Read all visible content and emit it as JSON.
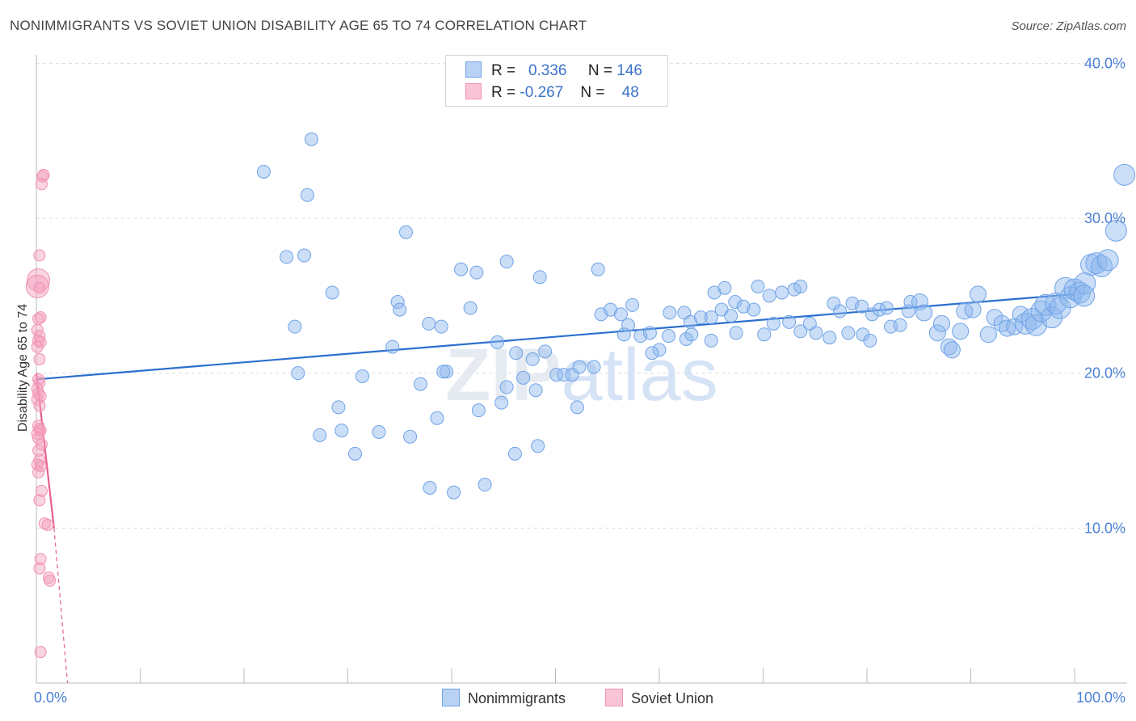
{
  "header": {
    "title": "NONIMMIGRANTS VS SOVIET UNION DISABILITY AGE 65 TO 74 CORRELATION CHART",
    "source": "Source: ZipAtlas.com"
  },
  "legend": {
    "row1": {
      "r_label": "R =",
      "r_value": "0.336",
      "n_label": "N =",
      "n_value": "146"
    },
    "row2": {
      "r_label": "R =",
      "r_value": "-0.267",
      "n_label": "N =",
      "n_value": "48"
    }
  },
  "bottom_legend": {
    "series1": "Nonimmigrants",
    "series2": "Soviet Union"
  },
  "colors": {
    "blue": "#6fa3e6",
    "blue_line": "#2b6fce",
    "pink": "#f191b2",
    "pink_line": "#e8608c",
    "tick": "#4a7fd4"
  },
  "chart_data": {
    "type": "scatter",
    "title": "NONIMMIGRANTS VS SOVIET UNION DISABILITY AGE 65 TO 74 CORRELATION CHART",
    "xlabel": "",
    "ylabel": "Disability Age 65 to 74",
    "xlim": [
      0,
      100
    ],
    "ylim": [
      0,
      40
    ],
    "x_tick_labels": [
      "0.0%",
      "100.0%"
    ],
    "y_tick_labels": [
      "10.0%",
      "20.0%",
      "30.0%",
      "40.0%"
    ],
    "y_ticks": [
      10,
      20,
      30,
      40
    ],
    "grid": true,
    "watermark": "ZIPatlas",
    "series": [
      {
        "name": "Nonimmigrants",
        "color": "#6fa3e6",
        "trend": {
          "x": [
            0,
            100
          ],
          "y": [
            19.6,
            25.1
          ]
        },
        "points": [
          {
            "x": 26.5,
            "y": 35.1
          },
          {
            "x": 21.9,
            "y": 33.0
          },
          {
            "x": 26.1,
            "y": 31.5
          },
          {
            "x": 35.6,
            "y": 29.1
          },
          {
            "x": 24.1,
            "y": 27.5
          },
          {
            "x": 25.8,
            "y": 27.6
          },
          {
            "x": 40.9,
            "y": 26.7
          },
          {
            "x": 42.4,
            "y": 26.5
          },
          {
            "x": 45.3,
            "y": 27.2
          },
          {
            "x": 48.5,
            "y": 26.2
          },
          {
            "x": 54.1,
            "y": 26.7
          },
          {
            "x": 28.5,
            "y": 25.2
          },
          {
            "x": 34.8,
            "y": 24.6
          },
          {
            "x": 35.0,
            "y": 24.1
          },
          {
            "x": 24.9,
            "y": 23.0
          },
          {
            "x": 37.8,
            "y": 23.2
          },
          {
            "x": 39.0,
            "y": 23.0
          },
          {
            "x": 41.8,
            "y": 24.2
          },
          {
            "x": 34.3,
            "y": 21.7
          },
          {
            "x": 44.4,
            "y": 22.0
          },
          {
            "x": 46.2,
            "y": 21.3
          },
          {
            "x": 47.8,
            "y": 20.9
          },
          {
            "x": 49.0,
            "y": 21.4
          },
          {
            "x": 25.2,
            "y": 20.0
          },
          {
            "x": 31.4,
            "y": 19.8
          },
          {
            "x": 37.0,
            "y": 19.3
          },
          {
            "x": 39.5,
            "y": 20.1
          },
          {
            "x": 39.2,
            "y": 20.1
          },
          {
            "x": 45.3,
            "y": 19.1
          },
          {
            "x": 46.9,
            "y": 19.7
          },
          {
            "x": 48.1,
            "y": 18.9
          },
          {
            "x": 50.1,
            "y": 19.9
          },
          {
            "x": 50.8,
            "y": 19.9
          },
          {
            "x": 51.6,
            "y": 19.9
          },
          {
            "x": 52.3,
            "y": 20.4
          },
          {
            "x": 53.7,
            "y": 20.4
          },
          {
            "x": 29.1,
            "y": 17.8
          },
          {
            "x": 38.6,
            "y": 17.1
          },
          {
            "x": 42.6,
            "y": 17.6
          },
          {
            "x": 44.8,
            "y": 18.1
          },
          {
            "x": 52.1,
            "y": 17.8
          },
          {
            "x": 27.3,
            "y": 16.0
          },
          {
            "x": 29.4,
            "y": 16.3
          },
          {
            "x": 33.0,
            "y": 16.2
          },
          {
            "x": 36.0,
            "y": 15.9
          },
          {
            "x": 30.7,
            "y": 14.8
          },
          {
            "x": 46.1,
            "y": 14.8
          },
          {
            "x": 48.3,
            "y": 15.3
          },
          {
            "x": 37.9,
            "y": 12.6
          },
          {
            "x": 40.2,
            "y": 12.3
          },
          {
            "x": 43.2,
            "y": 12.8
          },
          {
            "x": 54.4,
            "y": 23.8
          },
          {
            "x": 55.3,
            "y": 24.1
          },
          {
            "x": 56.3,
            "y": 23.8
          },
          {
            "x": 57.4,
            "y": 24.4
          },
          {
            "x": 57.0,
            "y": 23.1
          },
          {
            "x": 56.6,
            "y": 22.5
          },
          {
            "x": 58.2,
            "y": 22.4
          },
          {
            "x": 59.1,
            "y": 22.6
          },
          {
            "x": 60.9,
            "y": 22.4
          },
          {
            "x": 61.0,
            "y": 23.9
          },
          {
            "x": 62.4,
            "y": 23.9
          },
          {
            "x": 63.0,
            "y": 23.3
          },
          {
            "x": 64.0,
            "y": 23.6
          },
          {
            "x": 65.0,
            "y": 23.6
          },
          {
            "x": 66.0,
            "y": 24.1
          },
          {
            "x": 66.9,
            "y": 23.7
          },
          {
            "x": 65.0,
            "y": 22.1
          },
          {
            "x": 62.6,
            "y": 22.2
          },
          {
            "x": 60.0,
            "y": 21.5
          },
          {
            "x": 59.3,
            "y": 21.3
          },
          {
            "x": 63.1,
            "y": 22.5
          },
          {
            "x": 65.3,
            "y": 25.2
          },
          {
            "x": 66.3,
            "y": 25.5
          },
          {
            "x": 67.3,
            "y": 24.6
          },
          {
            "x": 68.1,
            "y": 24.3
          },
          {
            "x": 69.1,
            "y": 24.1
          },
          {
            "x": 69.5,
            "y": 25.6
          },
          {
            "x": 70.6,
            "y": 25.0
          },
          {
            "x": 71.8,
            "y": 25.2
          },
          {
            "x": 73.0,
            "y": 25.4
          },
          {
            "x": 73.6,
            "y": 25.6
          },
          {
            "x": 67.4,
            "y": 22.6
          },
          {
            "x": 70.1,
            "y": 22.5
          },
          {
            "x": 71.0,
            "y": 23.2
          },
          {
            "x": 72.5,
            "y": 23.3
          },
          {
            "x": 73.6,
            "y": 22.7
          },
          {
            "x": 74.5,
            "y": 23.2
          },
          {
            "x": 75.1,
            "y": 22.6
          },
          {
            "x": 76.4,
            "y": 22.3
          },
          {
            "x": 76.8,
            "y": 24.5
          },
          {
            "x": 77.4,
            "y": 24.0
          },
          {
            "x": 78.6,
            "y": 24.5
          },
          {
            "x": 79.5,
            "y": 24.3
          },
          {
            "x": 78.2,
            "y": 22.6
          },
          {
            "x": 79.6,
            "y": 22.5
          },
          {
            "x": 80.3,
            "y": 22.1
          },
          {
            "x": 80.5,
            "y": 23.8
          },
          {
            "x": 81.2,
            "y": 24.1
          },
          {
            "x": 81.9,
            "y": 24.2
          },
          {
            "x": 82.3,
            "y": 23.0
          },
          {
            "x": 83.2,
            "y": 23.1
          },
          {
            "x": 84.0,
            "y": 24.0
          },
          {
            "x": 84.2,
            "y": 24.6
          },
          {
            "x": 85.1,
            "y": 24.6
          },
          {
            "x": 85.5,
            "y": 23.9
          },
          {
            "x": 86.8,
            "y": 22.6
          },
          {
            "x": 87.2,
            "y": 23.2
          },
          {
            "x": 87.9,
            "y": 21.7
          },
          {
            "x": 88.2,
            "y": 21.5
          },
          {
            "x": 89.0,
            "y": 22.7
          },
          {
            "x": 89.4,
            "y": 24.0
          },
          {
            "x": 90.2,
            "y": 24.1
          },
          {
            "x": 90.7,
            "y": 25.1
          },
          {
            "x": 91.7,
            "y": 22.5
          },
          {
            "x": 92.3,
            "y": 23.6
          },
          {
            "x": 93.0,
            "y": 23.2
          },
          {
            "x": 93.5,
            "y": 22.9
          },
          {
            "x": 94.2,
            "y": 23.0
          },
          {
            "x": 94.8,
            "y": 23.8
          },
          {
            "x": 95.3,
            "y": 23.2
          },
          {
            "x": 95.9,
            "y": 23.5
          },
          {
            "x": 96.3,
            "y": 23.1
          },
          {
            "x": 96.8,
            "y": 24.0
          },
          {
            "x": 97.2,
            "y": 24.4
          },
          {
            "x": 97.8,
            "y": 23.6
          },
          {
            "x": 98.2,
            "y": 24.5
          },
          {
            "x": 98.6,
            "y": 24.2
          },
          {
            "x": 99.1,
            "y": 25.5
          },
          {
            "x": 99.6,
            "y": 24.9
          },
          {
            "x": 100.0,
            "y": 25.4
          },
          {
            "x": 100.5,
            "y": 25.2
          },
          {
            "x": 101.0,
            "y": 25.8
          },
          {
            "x": 101.6,
            "y": 27.0
          },
          {
            "x": 102.1,
            "y": 27.1
          },
          {
            "x": 102.6,
            "y": 26.9
          },
          {
            "x": 103.2,
            "y": 27.3
          },
          {
            "x": 100.9,
            "y": 25.0
          },
          {
            "x": 104.0,
            "y": 29.2
          },
          {
            "x": 104.8,
            "y": 32.8
          }
        ]
      },
      {
        "name": "Soviet Union",
        "color": "#f191b2",
        "trend": {
          "x": [
            0,
            1.7
          ],
          "y": [
            20.0,
            10.0
          ]
        },
        "trend_dashed": {
          "x": [
            1.7,
            3.0
          ],
          "y": [
            10.0,
            0
          ]
        },
        "points": [
          {
            "x": 0.6,
            "y": 32.7
          },
          {
            "x": 0.7,
            "y": 32.8
          },
          {
            "x": 0.5,
            "y": 32.2
          },
          {
            "x": 0.3,
            "y": 27.6
          },
          {
            "x": 0.2,
            "y": 26.0
          },
          {
            "x": 0.1,
            "y": 25.6
          },
          {
            "x": 0.3,
            "y": 25.5
          },
          {
            "x": 0.4,
            "y": 23.6
          },
          {
            "x": 0.2,
            "y": 23.5
          },
          {
            "x": 0.1,
            "y": 22.8
          },
          {
            "x": 0.3,
            "y": 22.4
          },
          {
            "x": 0.2,
            "y": 22.1
          },
          {
            "x": 0.4,
            "y": 22.0
          },
          {
            "x": 0.1,
            "y": 21.7
          },
          {
            "x": 0.3,
            "y": 20.9
          },
          {
            "x": 0.2,
            "y": 19.6
          },
          {
            "x": 0.3,
            "y": 19.4
          },
          {
            "x": 0.1,
            "y": 19.0
          },
          {
            "x": 0.2,
            "y": 18.7
          },
          {
            "x": 0.4,
            "y": 18.5
          },
          {
            "x": 0.1,
            "y": 18.3
          },
          {
            "x": 0.3,
            "y": 17.9
          },
          {
            "x": 0.2,
            "y": 16.6
          },
          {
            "x": 0.3,
            "y": 16.4
          },
          {
            "x": 0.4,
            "y": 16.3
          },
          {
            "x": 0.1,
            "y": 16.1
          },
          {
            "x": 0.2,
            "y": 15.8
          },
          {
            "x": 0.5,
            "y": 15.4
          },
          {
            "x": 0.2,
            "y": 15.0
          },
          {
            "x": 0.3,
            "y": 14.4
          },
          {
            "x": 0.1,
            "y": 14.1
          },
          {
            "x": 0.4,
            "y": 14.0
          },
          {
            "x": 0.2,
            "y": 13.6
          },
          {
            "x": 0.5,
            "y": 12.4
          },
          {
            "x": 0.3,
            "y": 11.8
          },
          {
            "x": 0.8,
            "y": 10.3
          },
          {
            "x": 1.1,
            "y": 10.2
          },
          {
            "x": 0.4,
            "y": 8.0
          },
          {
            "x": 0.3,
            "y": 7.4
          },
          {
            "x": 1.2,
            "y": 6.8
          },
          {
            "x": 1.3,
            "y": 6.6
          },
          {
            "x": 0.4,
            "y": 2.0
          }
        ]
      }
    ]
  }
}
